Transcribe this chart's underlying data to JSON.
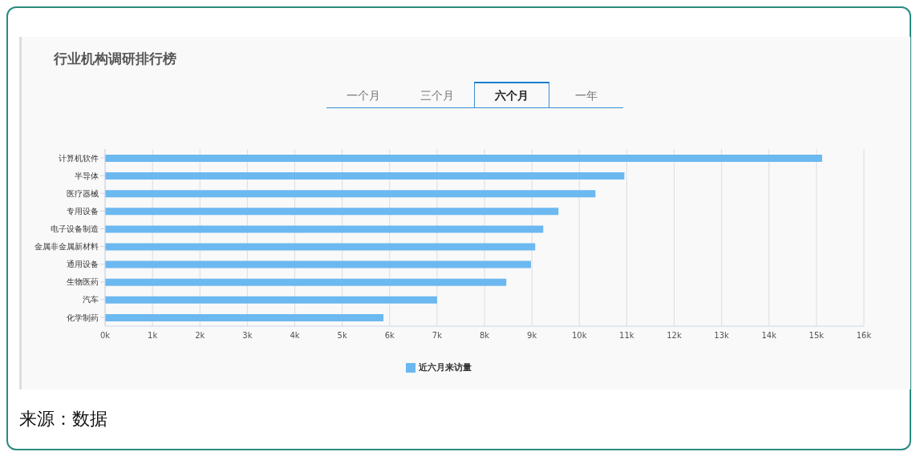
{
  "chart_data": {
    "type": "bar",
    "orientation": "horizontal",
    "title": "行业机构调研排行榜",
    "categories": [
      "计算机软件",
      "半导体",
      "医疗器械",
      "专用设备",
      "电子设备制造",
      "金属非金属新材料",
      "通用设备",
      "生物医药",
      "汽车",
      "化学制药"
    ],
    "series": [
      {
        "name": "近六月来访量",
        "color": "#6cb8f0",
        "values": [
          15120,
          10950,
          10340,
          9560,
          9240,
          9070,
          8980,
          8460,
          7000,
          5870
        ]
      }
    ],
    "xlim": [
      0,
      16000
    ],
    "xticks": [
      {
        "value": 0,
        "label": "0k"
      },
      {
        "value": 1000,
        "label": "1k"
      },
      {
        "value": 2000,
        "label": "2k"
      },
      {
        "value": 3000,
        "label": "3k"
      },
      {
        "value": 4000,
        "label": "4k"
      },
      {
        "value": 5000,
        "label": "5k"
      },
      {
        "value": 6000,
        "label": "6k"
      },
      {
        "value": 7000,
        "label": "7k"
      },
      {
        "value": 8000,
        "label": "8k"
      },
      {
        "value": 9000,
        "label": "9k"
      },
      {
        "value": 10000,
        "label": "10k"
      },
      {
        "value": 11000,
        "label": "11k"
      },
      {
        "value": 12000,
        "label": "12k"
      },
      {
        "value": 13000,
        "label": "13k"
      },
      {
        "value": 14000,
        "label": "14k"
      },
      {
        "value": 15000,
        "label": "15k"
      },
      {
        "value": 16000,
        "label": "16k"
      }
    ],
    "grid": "x",
    "legend": "bottom",
    "annotations": [
      "一个月",
      "三个月",
      "六个月",
      "一年",
      "来源：数据"
    ]
  }
}
